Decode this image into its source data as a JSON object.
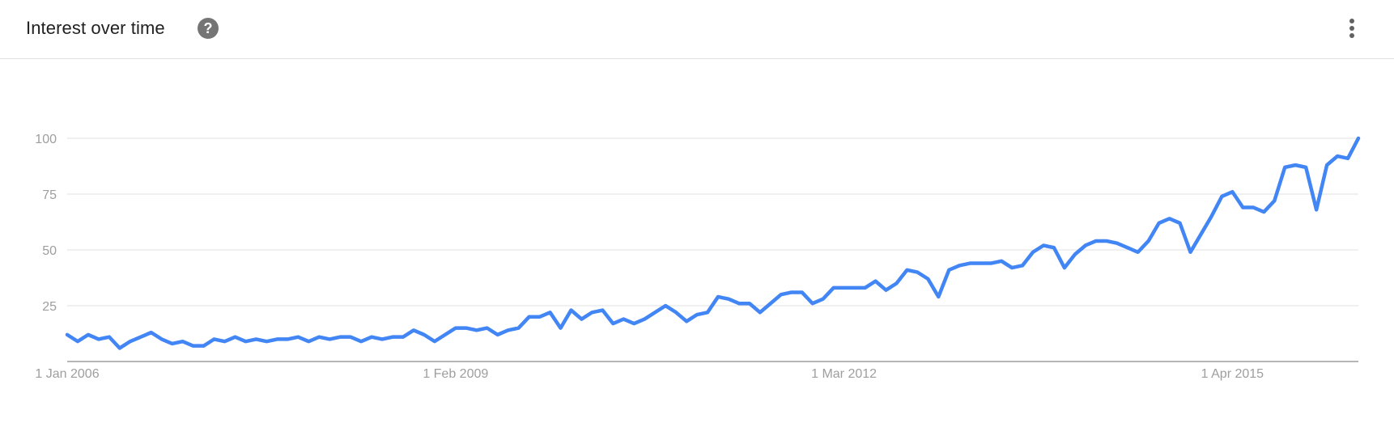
{
  "header": {
    "title": "Interest over time",
    "help_icon": "help-circle-icon",
    "menu_icon": "more-vert-icon"
  },
  "colors": {
    "line": "#4285f4",
    "grid": "#e0e0e0",
    "axis": "#9e9e9e",
    "tick_label": "#9e9e9e"
  },
  "chart_data": {
    "type": "line",
    "title": "",
    "xlabel": "",
    "ylabel": "",
    "ylim": [
      0,
      100
    ],
    "yticks": [
      25,
      50,
      75,
      100
    ],
    "xticks": [
      "1 Jan 2006",
      "1 Feb 2009",
      "1 Mar 2012",
      "1 Apr 2015"
    ],
    "x_start": "2006-01",
    "x_step": "month",
    "grid": true,
    "legend": "none",
    "series": [
      {
        "values": [
          12,
          9,
          12,
          10,
          11,
          6,
          9,
          11,
          13,
          10,
          8,
          9,
          7,
          7,
          10,
          9,
          11,
          9,
          10,
          9,
          10,
          10,
          11,
          9,
          11,
          10,
          11,
          11,
          9,
          11,
          10,
          11,
          11,
          14,
          12,
          9,
          12,
          15,
          15,
          14,
          15,
          12,
          14,
          15,
          20,
          20,
          22,
          15,
          23,
          19,
          22,
          23,
          17,
          19,
          17,
          19,
          22,
          25,
          22,
          18,
          21,
          22,
          29,
          28,
          26,
          26,
          22,
          26,
          30,
          31,
          31,
          26,
          28,
          33,
          33,
          33,
          33,
          36,
          32,
          35,
          41,
          40,
          37,
          29,
          41,
          43,
          44,
          44,
          44,
          45,
          42,
          43,
          49,
          52,
          51,
          42,
          48,
          52,
          54,
          54,
          53,
          51,
          49,
          54,
          62,
          64,
          62,
          49,
          57,
          65,
          74,
          76,
          69,
          69,
          67,
          72,
          87,
          88,
          87,
          68,
          88,
          92,
          91,
          100
        ]
      }
    ]
  }
}
